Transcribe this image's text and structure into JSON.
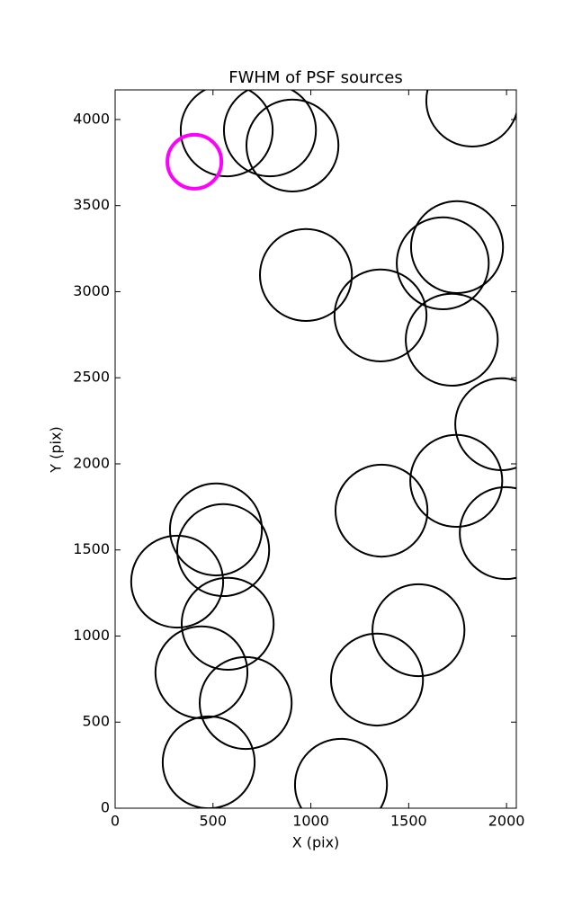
{
  "chart_data": {
    "type": "scatter",
    "title": "FWHM of PSF sources",
    "x_label": "X (pix)",
    "y_label": "Y (pix)",
    "xlim": [
      0,
      2050
    ],
    "ylim": [
      0,
      4172
    ],
    "xticks": [
      0,
      500,
      1000,
      1500,
      2000
    ],
    "yticks": [
      0,
      500,
      1000,
      1500,
      2000,
      2500,
      3000,
      3500,
      4000
    ],
    "series": [
      {
        "color": "#000000",
        "x": [
          570,
          791,
          906,
          1825,
          975,
          1747,
          1674,
          1356,
          1720,
          1973,
          1743,
          1361,
          1996,
          515,
          552,
          317,
          575,
          1550,
          441,
          1338,
          667,
          478,
          1154
        ],
        "values": [
          3937,
          3937,
          3849,
          4110,
          3097,
          3259,
          3165,
          2862,
          2721,
          2230,
          1901,
          1728,
          1598,
          1619,
          1499,
          1316,
          1071,
          1034,
          789,
          747,
          611,
          266,
          136
        ],
        "sizes": [
          235,
          235,
          235,
          235,
          235,
          235,
          235,
          235,
          235,
          235,
          235,
          235,
          235,
          235,
          235,
          235,
          235,
          235,
          235,
          235,
          235,
          235,
          235
        ]
      },
      {
        "color": "#ff00ff",
        "x": [
          405
        ],
        "values": [
          3755
        ],
        "sizes": [
          138
        ]
      }
    ]
  }
}
